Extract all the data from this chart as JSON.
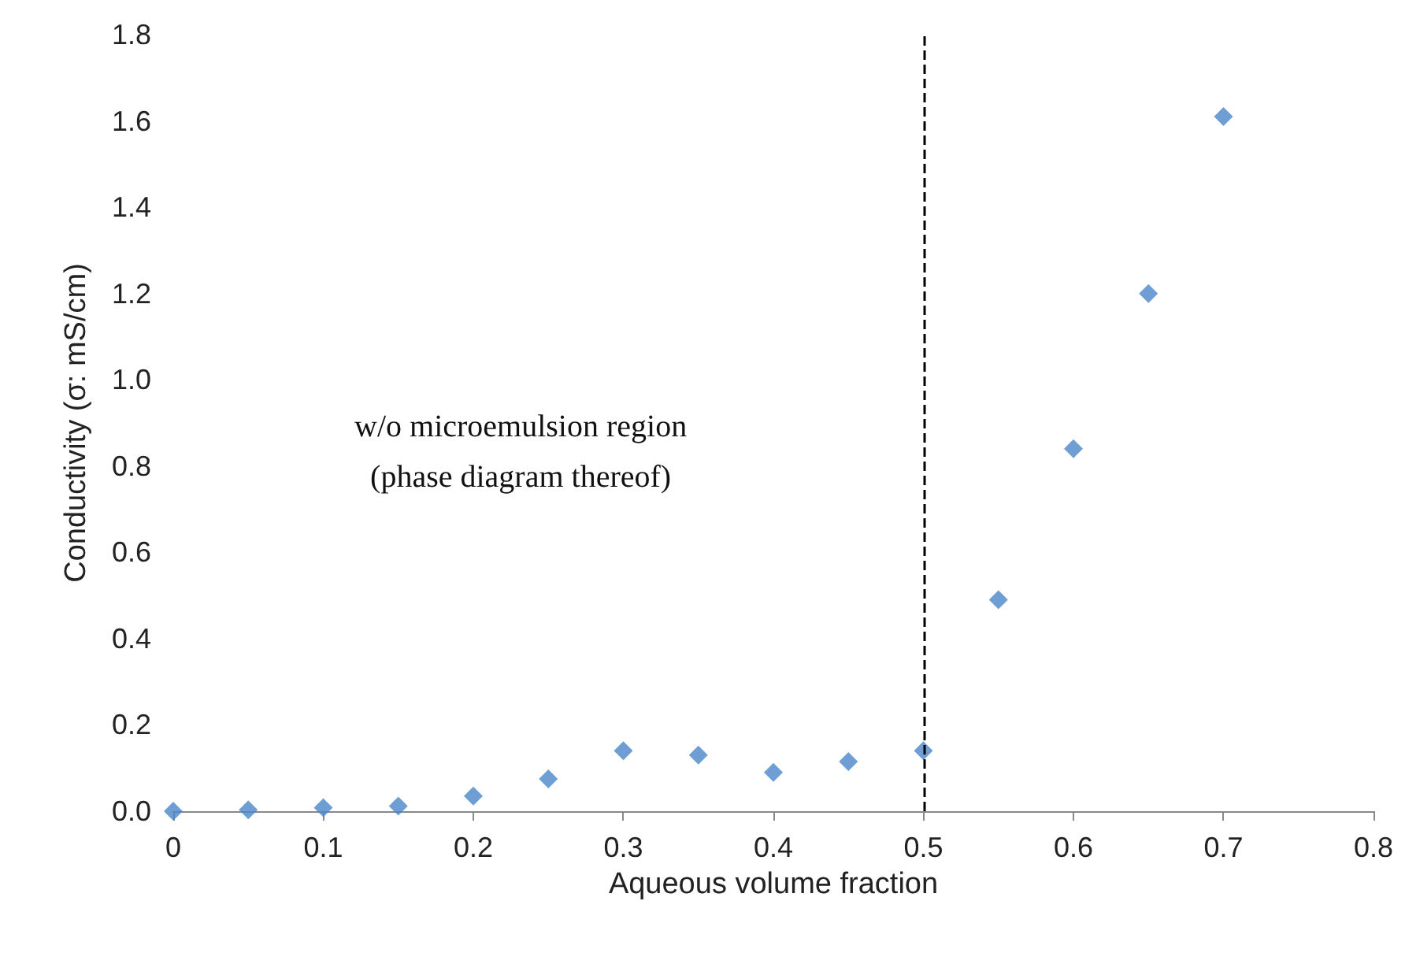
{
  "chart_data": {
    "type": "scatter",
    "xlabel": "Aqueous volume fraction",
    "ylabel": "Conductivity (σ: mS/cm)",
    "x": [
      0,
      0.05,
      0.1,
      0.15,
      0.2,
      0.25,
      0.3,
      0.35,
      0.4,
      0.45,
      0.5,
      0.55,
      0.6,
      0.65,
      0.7
    ],
    "series": [
      {
        "color": "#4a86c8",
        "values": [
          0,
          0.003,
          0.008,
          0.012,
          0.035,
          0.075,
          0.14,
          0.13,
          0.09,
          0.115,
          0.14,
          0.49,
          0.84,
          1.2,
          1.61
        ]
      }
    ],
    "marker": "diamond",
    "xlim": [
      0,
      0.8
    ],
    "xticks": [
      0,
      0.1,
      0.2,
      0.3,
      0.4,
      0.5,
      0.6,
      0.7,
      0.8
    ],
    "ylim": [
      0,
      1.8
    ],
    "yticks": [
      {
        "value": 0,
        "label": "0.0"
      },
      {
        "value": 0.2,
        "label": "0.2"
      },
      {
        "value": 0.4,
        "label": "0.4"
      },
      {
        "value": 0.6,
        "label": "0.6"
      },
      {
        "value": 0.8,
        "label": "0.8"
      },
      {
        "value": 1,
        "label": "1.0"
      },
      {
        "value": 1.2,
        "label": "1.2"
      },
      {
        "value": 1.4,
        "label": "1.4"
      },
      {
        "value": 1.6,
        "label": "1.6"
      },
      {
        "value": 1.8,
        "label": "1.8"
      }
    ],
    "grid": false,
    "ref_lines": [
      {
        "axis": "x",
        "value": 0.5,
        "color": "#000000",
        "line_style": "dashed"
      }
    ],
    "annotations": [
      "w/o microemulsion region\n(phase diagram thereof)"
    ]
  }
}
